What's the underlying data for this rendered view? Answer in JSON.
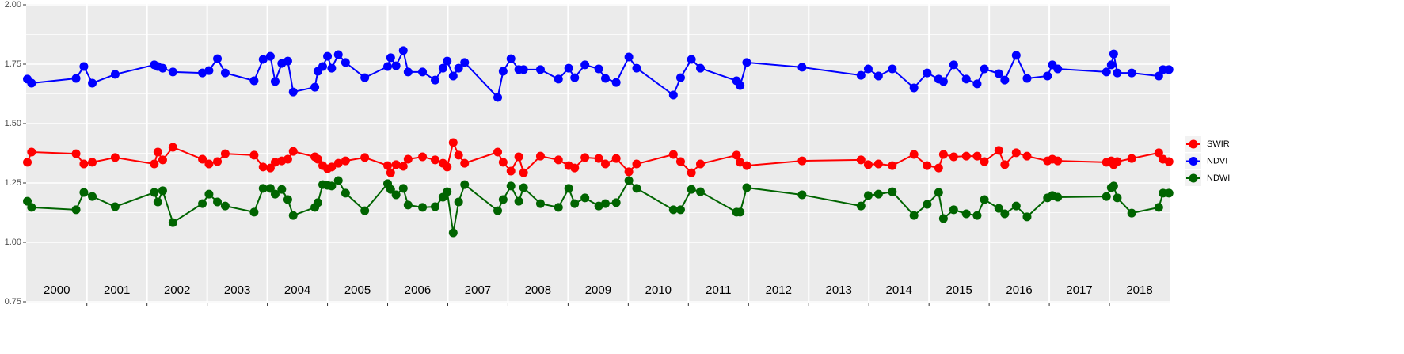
{
  "chart_data": {
    "type": "line",
    "x": [
      2000.01,
      2000.08,
      2000.82,
      2000.95,
      2001.09,
      2001.47,
      2002.12,
      2002.18,
      2002.26,
      2002.43,
      2002.92,
      2003.03,
      2003.17,
      2003.3,
      2003.78,
      2003.93,
      2004.05,
      2004.13,
      2004.24,
      2004.34,
      2004.43,
      2004.79,
      2004.84,
      2004.92,
      2005.0,
      2005.07,
      2005.18,
      2005.3,
      2005.62,
      2006.0,
      2006.05,
      2006.14,
      2006.26,
      2006.34,
      2006.58,
      2006.79,
      2006.92,
      2006.99,
      2007.09,
      2007.18,
      2007.28,
      2007.83,
      2007.92,
      2008.05,
      2008.18,
      2008.26,
      2008.54,
      2008.84,
      2009.01,
      2009.11,
      2009.28,
      2009.51,
      2009.62,
      2009.8,
      2010.01,
      2010.14,
      2010.75,
      2010.87,
      2011.05,
      2011.2,
      2011.8,
      2011.86,
      2011.97,
      2012.89,
      2013.87,
      2013.99,
      2014.16,
      2014.39,
      2014.75,
      2014.97,
      2015.16,
      2015.24,
      2015.41,
      2015.62,
      2015.8,
      2015.92,
      2016.16,
      2016.26,
      2016.45,
      2016.63,
      2016.97,
      2017.05,
      2017.14,
      2017.95,
      2018.03,
      2018.07,
      2018.13,
      2018.37,
      2018.82,
      2018.89,
      2018.99
    ],
    "series": [
      {
        "name": "SWIR",
        "color": "#ff0000",
        "values": [
          1.337,
          1.38,
          1.373,
          1.33,
          1.337,
          1.357,
          1.33,
          1.38,
          1.347,
          1.4,
          1.35,
          1.33,
          1.34,
          1.373,
          1.367,
          1.317,
          1.313,
          1.337,
          1.343,
          1.35,
          1.383,
          1.36,
          1.35,
          1.323,
          1.31,
          1.317,
          1.333,
          1.343,
          1.357,
          1.323,
          1.293,
          1.327,
          1.32,
          1.35,
          1.36,
          1.347,
          1.333,
          1.317,
          1.42,
          1.367,
          1.333,
          1.38,
          1.337,
          1.3,
          1.36,
          1.293,
          1.363,
          1.347,
          1.323,
          1.313,
          1.357,
          1.353,
          1.33,
          1.353,
          1.297,
          1.33,
          1.37,
          1.34,
          1.293,
          1.33,
          1.367,
          1.337,
          1.323,
          1.343,
          1.347,
          1.327,
          1.33,
          1.323,
          1.37,
          1.323,
          1.313,
          1.37,
          1.36,
          1.363,
          1.363,
          1.34,
          1.387,
          1.327,
          1.377,
          1.363,
          1.343,
          1.35,
          1.343,
          1.337,
          1.343,
          1.327,
          1.34,
          1.353,
          1.377,
          1.35,
          1.34
        ]
      },
      {
        "name": "NDVI",
        "color": "#0000ff",
        "values": [
          1.687,
          1.67,
          1.69,
          1.74,
          1.67,
          1.707,
          1.747,
          1.74,
          1.733,
          1.717,
          1.713,
          1.723,
          1.773,
          1.713,
          1.68,
          1.77,
          1.783,
          1.677,
          1.753,
          1.763,
          1.633,
          1.653,
          1.72,
          1.74,
          1.783,
          1.733,
          1.79,
          1.757,
          1.693,
          1.74,
          1.777,
          1.743,
          1.807,
          1.717,
          1.717,
          1.683,
          1.733,
          1.763,
          1.7,
          1.733,
          1.757,
          1.61,
          1.72,
          1.773,
          1.727,
          1.727,
          1.727,
          1.687,
          1.733,
          1.693,
          1.747,
          1.73,
          1.69,
          1.673,
          1.78,
          1.733,
          1.62,
          1.693,
          1.77,
          1.733,
          1.68,
          1.66,
          1.757,
          1.737,
          1.703,
          1.73,
          1.7,
          1.73,
          1.65,
          1.713,
          1.687,
          1.677,
          1.747,
          1.687,
          1.667,
          1.73,
          1.71,
          1.683,
          1.787,
          1.69,
          1.7,
          1.747,
          1.73,
          1.717,
          1.747,
          1.793,
          1.713,
          1.713,
          1.7,
          1.727,
          1.727
        ]
      },
      {
        "name": "NDWI",
        "color": "#006400",
        "values": [
          1.173,
          1.147,
          1.137,
          1.21,
          1.193,
          1.15,
          1.21,
          1.17,
          1.217,
          1.083,
          1.163,
          1.203,
          1.17,
          1.153,
          1.127,
          1.227,
          1.227,
          1.203,
          1.223,
          1.18,
          1.113,
          1.147,
          1.167,
          1.243,
          1.24,
          1.237,
          1.26,
          1.207,
          1.133,
          1.247,
          1.223,
          1.2,
          1.227,
          1.157,
          1.147,
          1.15,
          1.19,
          1.213,
          1.04,
          1.17,
          1.243,
          1.133,
          1.18,
          1.237,
          1.173,
          1.23,
          1.163,
          1.147,
          1.227,
          1.163,
          1.187,
          1.153,
          1.163,
          1.167,
          1.26,
          1.227,
          1.137,
          1.137,
          1.223,
          1.213,
          1.127,
          1.127,
          1.23,
          1.2,
          1.153,
          1.197,
          1.203,
          1.213,
          1.113,
          1.16,
          1.21,
          1.1,
          1.137,
          1.12,
          1.113,
          1.18,
          1.143,
          1.12,
          1.153,
          1.107,
          1.187,
          1.197,
          1.19,
          1.193,
          1.23,
          1.237,
          1.187,
          1.123,
          1.147,
          1.207,
          1.207
        ]
      }
    ],
    "xlim": [
      1999.99,
      2019.0
    ],
    "xticks": [
      {
        "value": 2000.5,
        "label": "2000"
      },
      {
        "value": 2001.5,
        "label": "2001"
      },
      {
        "value": 2002.5,
        "label": "2002"
      },
      {
        "value": 2003.5,
        "label": "2003"
      },
      {
        "value": 2004.5,
        "label": "2004"
      },
      {
        "value": 2005.5,
        "label": "2005"
      },
      {
        "value": 2006.5,
        "label": "2006"
      },
      {
        "value": 2007.5,
        "label": "2007"
      },
      {
        "value": 2008.5,
        "label": "2008"
      },
      {
        "value": 2009.5,
        "label": "2009"
      },
      {
        "value": 2010.5,
        "label": "2010"
      },
      {
        "value": 2011.5,
        "label": "2011"
      },
      {
        "value": 2012.5,
        "label": "2012"
      },
      {
        "value": 2013.5,
        "label": "2013"
      },
      {
        "value": 2014.5,
        "label": "2014"
      },
      {
        "value": 2015.5,
        "label": "2015"
      },
      {
        "value": 2016.5,
        "label": "2016"
      },
      {
        "value": 2017.5,
        "label": "2017"
      },
      {
        "value": 2018.5,
        "label": "2018"
      }
    ],
    "xgrid": [
      2001,
      2002,
      2003,
      2004,
      2005,
      2006,
      2007,
      2008,
      2009,
      2010,
      2011,
      2012,
      2013,
      2014,
      2015,
      2016,
      2017,
      2018
    ],
    "ylim": [
      0.75,
      2.0
    ],
    "yticks": [
      0.75,
      {
        "value": 1.0,
        "label": "1.00"
      },
      1.25,
      {
        "value": 1.5,
        "label": "1.50"
      },
      1.75,
      {
        "value": 2.0,
        "label": "2.00"
      }
    ],
    "yminor": [
      0.875,
      1.125,
      1.375,
      1.625,
      1.875
    ],
    "grid": true,
    "legend": "right"
  }
}
